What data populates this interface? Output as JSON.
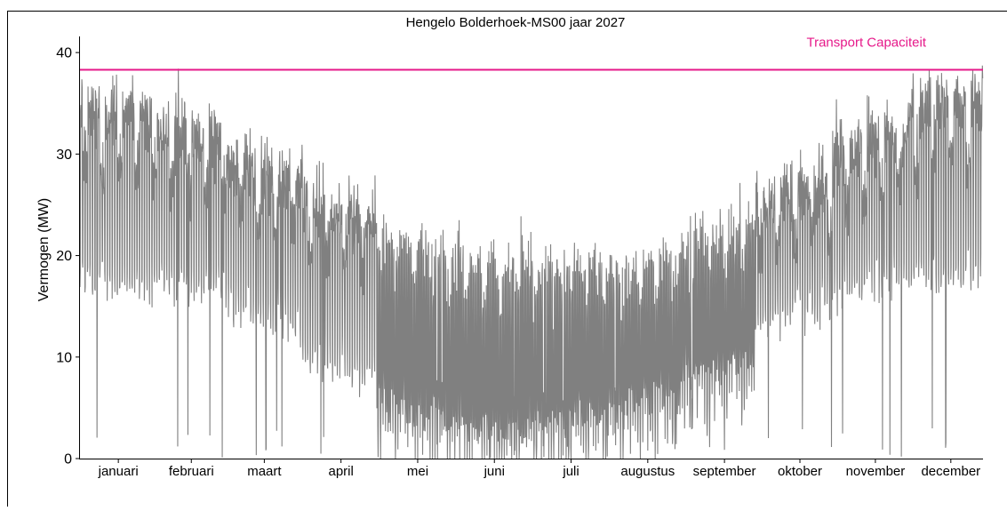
{
  "chart_data": {
    "type": "line",
    "title": "Hengelo Bolderhoek-MS00 jaar 2027",
    "xlabel": "",
    "ylabel": "Vermogen (MW)",
    "ylim": [
      0,
      41.5
    ],
    "yticks": [
      0,
      10,
      20,
      30,
      40
    ],
    "ytick_labels": [
      "0",
      "10",
      "20",
      "30",
      "40"
    ],
    "x_unit": "hour of year 2027",
    "xlim": [
      0,
      8760
    ],
    "month_labels": [
      "januari",
      "februari",
      "maart",
      "april",
      "mei",
      "juni",
      "juli",
      "augustus",
      "september",
      "oktober",
      "november",
      "december"
    ],
    "month_centers_hour": [
      372,
      1080,
      1788,
      2532,
      3276,
      4020,
      4764,
      5508,
      6252,
      6984,
      7716,
      8448
    ],
    "grid": false,
    "series": [
      {
        "name": "",
        "color": "#808080",
        "style": "hourly load profile, daily oscillation",
        "daily_peak_by_month": [
          {
            "month": "januari",
            "typical_peak": 35,
            "max_peak": 38.5,
            "typical_min": 16
          },
          {
            "month": "februari",
            "typical_peak": 33,
            "max_peak": 37.3,
            "typical_min": 16
          },
          {
            "month": "maart",
            "typical_peak": 29,
            "max_peak": 31.8,
            "typical_min": 13
          },
          {
            "month": "april",
            "typical_peak": 25,
            "max_peak": 30.0,
            "typical_min": 8
          },
          {
            "month": "mei",
            "typical_peak": 21,
            "max_peak": 24.2,
            "typical_min": 4
          },
          {
            "month": "juni",
            "typical_peak": 19,
            "max_peak": 23.4,
            "typical_min": 2
          },
          {
            "month": "juli",
            "typical_peak": 19,
            "max_peak": 22.4,
            "typical_min": 3
          },
          {
            "month": "augustus",
            "typical_peak": 19,
            "max_peak": 21.5,
            "typical_min": 5
          },
          {
            "month": "september",
            "typical_peak": 22,
            "max_peak": 28.6,
            "typical_min": 8
          },
          {
            "month": "oktober",
            "typical_peak": 27,
            "max_peak": 30.0,
            "typical_min": 13
          },
          {
            "month": "november",
            "typical_peak": 32,
            "max_peak": 36.4,
            "typical_min": 16
          },
          {
            "month": "december",
            "typical_peak": 36,
            "max_peak": 39.6,
            "typical_min": 17
          }
        ]
      }
    ],
    "reference_lines": [
      {
        "name": "Transport Capaciteit",
        "value": 38.3,
        "color": "#e6198a"
      }
    ]
  }
}
